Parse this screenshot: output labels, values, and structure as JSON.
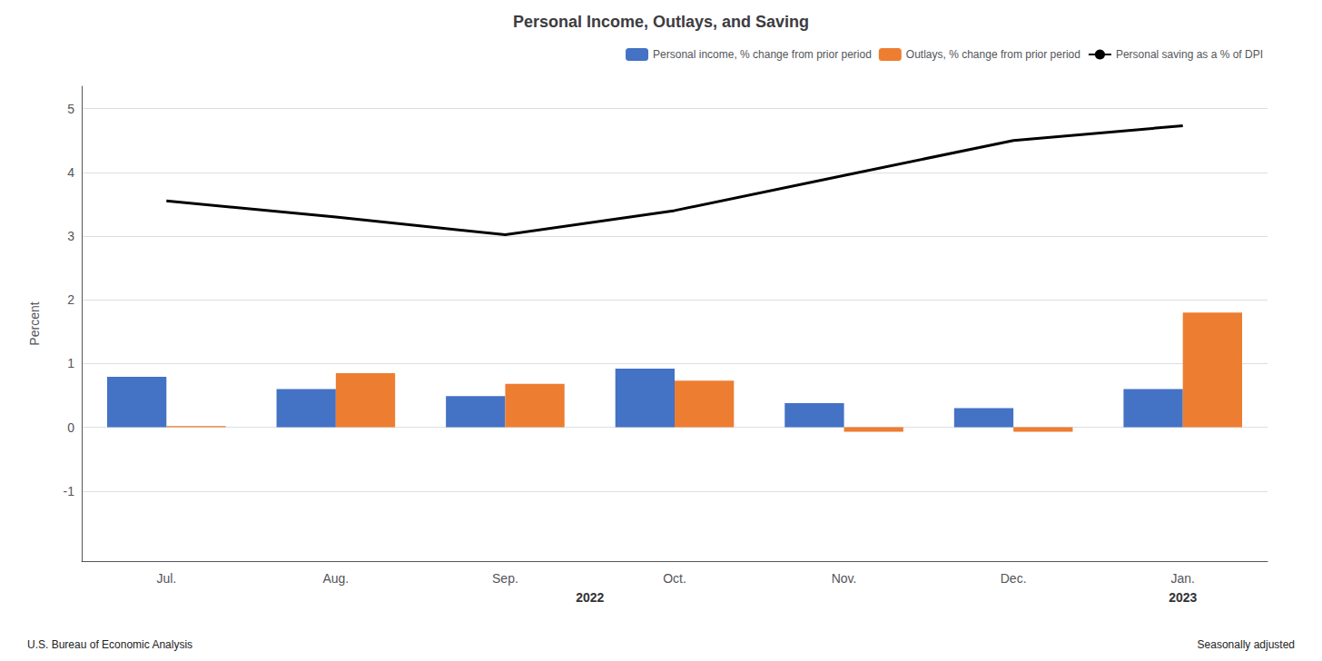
{
  "chart_data": {
    "type": "bar",
    "title": "Personal Income, Outlays, and Saving",
    "ylabel": "Percent",
    "categories": [
      "Jul.",
      "Aug.",
      "Sep.",
      "Oct.",
      "Nov.",
      "Dec.",
      "Jan."
    ],
    "series": [
      {
        "name": "Personal income, % change from prior period",
        "type": "bar",
        "color": "#4472c4",
        "values": [
          0.79,
          0.6,
          0.49,
          0.92,
          0.38,
          0.3,
          0.6
        ]
      },
      {
        "name": "Outlays, % change from prior period",
        "type": "bar",
        "color": "#ed7d31",
        "values": [
          0.02,
          0.85,
          0.68,
          0.73,
          -0.07,
          -0.07,
          1.8
        ]
      },
      {
        "name": "Personal saving as a % of DPI",
        "type": "line",
        "color": "#000000",
        "values": [
          3.55,
          3.3,
          3.02,
          3.4,
          3.95,
          4.5,
          4.73
        ]
      }
    ],
    "ylim": [
      -2.1,
      5.35
    ],
    "yticks": [
      -1,
      0,
      1,
      2,
      3,
      4,
      5
    ],
    "grid": true,
    "legend": "upper right",
    "annotations": [
      {
        "text": "2022",
        "categories": [
          "Jul.",
          "Aug.",
          "Sep.",
          "Oct.",
          "Nov.",
          "Dec."
        ]
      },
      {
        "text": "2023",
        "categories": [
          "Jan."
        ]
      }
    ],
    "source": "U.S. Bureau of Economic Analysis",
    "note": "Seasonally adjusted"
  }
}
